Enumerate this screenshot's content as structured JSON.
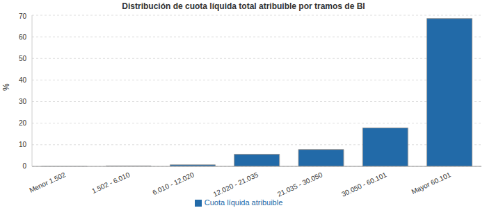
{
  "chart_data": {
    "type": "bar",
    "title": "Distribución de cuota líquida total atribuible por tramos de BI",
    "y_label": "%",
    "categories": [
      "Menor 1.502",
      "1.502 - 6.010",
      "6.010 - 12.020",
      "12.020 - 21.035",
      "21.035 - 30.050",
      "30.050 - 60.101",
      "Mayor 60.101"
    ],
    "series": [
      {
        "name": "Cuota líquida atribuible",
        "color": "#226aa8",
        "values": [
          0.05,
          0.2,
          0.7,
          5.6,
          7.8,
          17.8,
          68.5
        ]
      }
    ],
    "ylim": [
      0,
      70
    ],
    "yticks": [
      0,
      10,
      20,
      30,
      40,
      50,
      60,
      70
    ],
    "grid": true,
    "legend": "bottom"
  }
}
